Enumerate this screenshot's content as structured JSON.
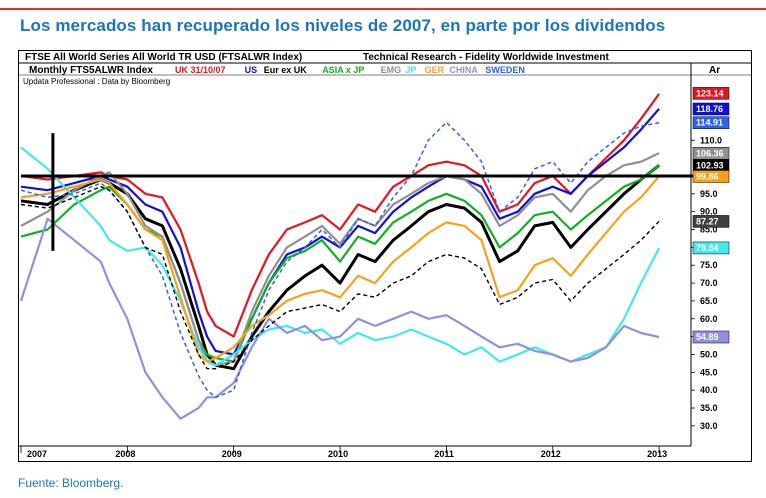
{
  "page": {
    "headline": "Los mercados han recuperado los niveles de 2007, en parte por los dividendos",
    "source": "Fuente: Bloomberg.",
    "brand": "updata",
    "accent_color": "#1b75bc",
    "rule_color": "#e0342a"
  },
  "chart_data": {
    "type": "line",
    "title": "FTSE All World Series All World TR USD (FTSALWR Index)",
    "title_right": "Technical Research - Fidelity Worldwide Investment",
    "subtitle": "Monthly FTS5ALWR Index",
    "legend": [
      {
        "label": "UK 31/10/07",
        "color": "#e8141b"
      },
      {
        "label": "US",
        "color": "#1010d8"
      },
      {
        "label": "Eur ex UK",
        "color": "#000000"
      },
      {
        "label": "ASIA x JP",
        "color": "#10b020"
      },
      {
        "label": "EMG",
        "color": "#909090"
      },
      {
        "label": "JP",
        "color": "#40e8f0"
      },
      {
        "label": "GER",
        "color": "#f5a21a"
      },
      {
        "label": "CHINA",
        "color": "#9090e0"
      },
      {
        "label": "SWEDEN",
        "color": "#3060f0"
      }
    ],
    "data_credit": "Updata Professional : Data by Bloomberg",
    "y_axis_label": "Ar",
    "ylim": [
      28,
      128
    ],
    "yticks": [
      "95.0",
      "90.0",
      "85.0",
      "80.0",
      "75.0",
      "70.0",
      "65.0",
      "60.0",
      "55.0",
      "50.0",
      "45.0",
      "40.0",
      "35.0",
      "30.0",
      "110.0"
    ],
    "x_labels": [
      "2007",
      "2008",
      "2009",
      "2010",
      "2011",
      "2012",
      "2013"
    ],
    "x_range": [
      2007.0,
      2013.3
    ],
    "reference_level": 100,
    "end_labels": [
      {
        "value": 123.14,
        "color": "#e8141b",
        "text": "123.14"
      },
      {
        "value": 118.76,
        "color": "#1010d8",
        "text": "118.76"
      },
      {
        "value": 114.91,
        "color": "#3060f0",
        "text": "114.91"
      },
      {
        "value": 106.36,
        "color": "#909090",
        "text": "106.36"
      },
      {
        "value": 102.93,
        "color": "#000000",
        "text": "102.93"
      },
      {
        "value": 99.86,
        "color": "#f5a21a",
        "text": "99.86"
      },
      {
        "value": 87.27,
        "color": "#404040",
        "text": "87.27"
      },
      {
        "value": 79.84,
        "color": "#40e8f0",
        "text": "79.84"
      },
      {
        "value": 54.89,
        "color": "#9090e0",
        "text": "54.89"
      }
    ],
    "series": [
      {
        "name": "UK",
        "color": "#e8141b",
        "width": 2.2,
        "dash": "",
        "x": [
          2007.0,
          2007.25,
          2007.5,
          2007.75,
          2007.83,
          2008.0,
          2008.17,
          2008.33,
          2008.5,
          2008.67,
          2008.75,
          2008.83,
          2009.0,
          2009.17,
          2009.33,
          2009.5,
          2009.67,
          2009.83,
          2010.0,
          2010.17,
          2010.33,
          2010.5,
          2010.67,
          2010.83,
          2011.0,
          2011.17,
          2011.33,
          2011.5,
          2011.67,
          2011.83,
          2012.0,
          2012.17,
          2012.33,
          2012.5,
          2012.67,
          2012.83,
          2013.0
        ],
        "y": [
          100,
          99,
          100,
          101,
          100,
          99,
          95,
          94,
          85,
          70,
          62,
          58,
          55,
          68,
          78,
          85,
          87,
          89,
          85,
          92,
          90,
          97,
          100,
          103,
          104,
          103,
          100,
          90,
          92,
          98,
          100,
          95,
          100,
          105,
          110,
          116,
          123
        ]
      },
      {
        "name": "US",
        "color": "#1010d8",
        "width": 2.2,
        "dash": "",
        "x": [
          2007.0,
          2007.25,
          2007.5,
          2007.75,
          2007.83,
          2008.0,
          2008.17,
          2008.33,
          2008.5,
          2008.67,
          2008.75,
          2008.83,
          2009.0,
          2009.17,
          2009.33,
          2009.5,
          2009.67,
          2009.83,
          2010.0,
          2010.17,
          2010.33,
          2010.5,
          2010.67,
          2010.83,
          2011.0,
          2011.17,
          2011.33,
          2011.5,
          2011.67,
          2011.83,
          2012.0,
          2012.17,
          2012.33,
          2012.5,
          2012.67,
          2012.83,
          2013.0
        ],
        "y": [
          97,
          96,
          98,
          100,
          99,
          97,
          92,
          90,
          80,
          62,
          55,
          51,
          50,
          60,
          70,
          78,
          80,
          83,
          80,
          86,
          84,
          90,
          94,
          97,
          100,
          99,
          97,
          88,
          90,
          95,
          97,
          95,
          100,
          104,
          108,
          113,
          118.8
        ]
      },
      {
        "name": "Eur ex UK",
        "color": "#000000",
        "width": 3,
        "dash": "",
        "x": [
          2007.0,
          2007.25,
          2007.5,
          2007.75,
          2007.83,
          2008.0,
          2008.17,
          2008.33,
          2008.5,
          2008.67,
          2008.75,
          2008.83,
          2009.0,
          2009.17,
          2009.33,
          2009.5,
          2009.67,
          2009.83,
          2010.0,
          2010.17,
          2010.33,
          2010.5,
          2010.67,
          2010.83,
          2011.0,
          2011.17,
          2011.33,
          2011.5,
          2011.67,
          2011.83,
          2012.0,
          2012.17,
          2012.33,
          2012.5,
          2012.67,
          2012.83,
          2013.0
        ],
        "y": [
          93,
          92,
          96,
          99,
          98,
          95,
          88,
          86,
          74,
          58,
          50,
          47,
          46,
          55,
          62,
          68,
          72,
          75,
          70,
          78,
          76,
          82,
          86,
          90,
          92,
          91,
          87,
          76,
          79,
          86,
          87,
          80,
          85,
          90,
          95,
          99,
          103
        ]
      },
      {
        "name": "ASIA x JP",
        "color": "#10b020",
        "width": 2.2,
        "dash": "",
        "x": [
          2007.0,
          2007.25,
          2007.5,
          2007.75,
          2007.83,
          2008.0,
          2008.17,
          2008.33,
          2008.5,
          2008.67,
          2008.75,
          2008.83,
          2009.0,
          2009.17,
          2009.33,
          2009.5,
          2009.67,
          2009.83,
          2010.0,
          2010.17,
          2010.33,
          2010.5,
          2010.67,
          2010.83,
          2011.0,
          2011.17,
          2011.33,
          2011.5,
          2011.67,
          2011.83,
          2012.0,
          2012.17,
          2012.33,
          2012.5,
          2012.67,
          2012.83,
          2013.0
        ],
        "y": [
          83,
          85,
          92,
          96,
          97,
          92,
          85,
          83,
          70,
          54,
          50,
          49,
          48,
          60,
          70,
          77,
          79,
          82,
          76,
          83,
          81,
          87,
          90,
          93,
          95,
          93,
          89,
          80,
          84,
          89,
          90,
          85,
          89,
          93,
          97,
          99,
          103
        ]
      },
      {
        "name": "EMG",
        "color": "#909090",
        "width": 2.2,
        "dash": "",
        "x": [
          2007.0,
          2007.25,
          2007.5,
          2007.75,
          2007.83,
          2008.0,
          2008.17,
          2008.33,
          2008.5,
          2008.67,
          2008.75,
          2008.83,
          2009.0,
          2009.17,
          2009.33,
          2009.5,
          2009.67,
          2009.83,
          2010.0,
          2010.17,
          2010.33,
          2010.5,
          2010.67,
          2010.83,
          2011.0,
          2011.17,
          2011.33,
          2011.5,
          2011.67,
          2011.83,
          2012.0,
          2012.17,
          2012.33,
          2012.5,
          2012.67,
          2012.83,
          2013.0
        ],
        "y": [
          86,
          90,
          96,
          100,
          101,
          95,
          86,
          83,
          70,
          54,
          48,
          47,
          48,
          62,
          72,
          80,
          83,
          86,
          81,
          88,
          86,
          92,
          95,
          98,
          100,
          99,
          95,
          86,
          89,
          94,
          95,
          90,
          96,
          100,
          103,
          104,
          106.4
        ]
      },
      {
        "name": "JP",
        "color": "#40e8f0",
        "width": 2.2,
        "dash": "",
        "x": [
          2007.0,
          2007.25,
          2007.5,
          2007.75,
          2007.83,
          2008.0,
          2008.17,
          2008.33,
          2008.5,
          2008.67,
          2008.75,
          2008.83,
          2009.0,
          2009.17,
          2009.33,
          2009.5,
          2009.67,
          2009.83,
          2010.0,
          2010.17,
          2010.33,
          2010.5,
          2010.67,
          2010.83,
          2011.0,
          2011.17,
          2011.33,
          2011.5,
          2011.67,
          2011.83,
          2012.0,
          2012.17,
          2012.33,
          2012.5,
          2012.67,
          2012.83,
          2013.0
        ],
        "y": [
          108,
          102,
          94,
          86,
          82,
          79,
          80,
          75,
          65,
          52,
          48,
          47,
          50,
          54,
          57,
          58,
          56,
          57,
          53,
          56,
          54,
          55,
          57,
          55,
          53,
          50,
          52,
          48,
          50,
          52,
          50,
          48,
          50,
          52,
          60,
          70,
          79.8
        ]
      },
      {
        "name": "GER",
        "color": "#f5a21a",
        "width": 2.2,
        "dash": "",
        "x": [
          2007.0,
          2007.25,
          2007.5,
          2007.75,
          2007.83,
          2008.0,
          2008.17,
          2008.33,
          2008.5,
          2008.67,
          2008.75,
          2008.83,
          2009.0,
          2009.17,
          2009.33,
          2009.5,
          2009.67,
          2009.83,
          2010.0,
          2010.17,
          2010.33,
          2010.5,
          2010.67,
          2010.83,
          2011.0,
          2011.17,
          2011.33,
          2011.5,
          2011.67,
          2011.83,
          2012.0,
          2012.17,
          2012.33,
          2012.5,
          2012.67,
          2012.83,
          2013.0
        ],
        "y": [
          94,
          95,
          97,
          99,
          98,
          92,
          85,
          82,
          66,
          50,
          48,
          49,
          52,
          58,
          61,
          65,
          67,
          68,
          66,
          72,
          70,
          76,
          80,
          84,
          87,
          86,
          82,
          66,
          68,
          75,
          77,
          72,
          78,
          84,
          90,
          94,
          99.9
        ]
      },
      {
        "name": "CHINA",
        "color": "#9090e0",
        "width": 2.2,
        "dash": "",
        "x": [
          2007.0,
          2007.25,
          2007.5,
          2007.75,
          2007.83,
          2008.0,
          2008.17,
          2008.33,
          2008.5,
          2008.67,
          2008.75,
          2008.83,
          2009.0,
          2009.17,
          2009.33,
          2009.5,
          2009.67,
          2009.83,
          2010.0,
          2010.17,
          2010.33,
          2010.5,
          2010.67,
          2010.83,
          2011.0,
          2011.17,
          2011.33,
          2011.5,
          2011.67,
          2011.83,
          2012.0,
          2012.17,
          2012.33,
          2012.5,
          2012.67,
          2012.83,
          2013.0
        ],
        "y": [
          65,
          88,
          82,
          76,
          70,
          60,
          45,
          38,
          32,
          35,
          38,
          38,
          42,
          52,
          60,
          56,
          58,
          54,
          55,
          60,
          58,
          60,
          62,
          60,
          61,
          58,
          55,
          52,
          53,
          51,
          50,
          48,
          49,
          52,
          58,
          56,
          54.9
        ]
      },
      {
        "name": "SWEDEN",
        "color": "#3060f0",
        "width": 1.5,
        "dash": "4,3",
        "x": [
          2007.0,
          2007.25,
          2007.5,
          2007.75,
          2007.83,
          2008.0,
          2008.17,
          2008.33,
          2008.5,
          2008.67,
          2008.75,
          2008.83,
          2009.0,
          2009.17,
          2009.33,
          2009.5,
          2009.67,
          2009.83,
          2010.0,
          2010.17,
          2010.33,
          2010.5,
          2010.67,
          2010.83,
          2011.0,
          2011.17,
          2011.33,
          2011.5,
          2011.67,
          2011.83,
          2012.0,
          2012.17,
          2012.33,
          2012.5,
          2012.67,
          2012.83,
          2013.0
        ],
        "y": [
          96,
          94,
          95,
          98,
          96,
          90,
          80,
          72,
          56,
          44,
          40,
          38,
          40,
          56,
          68,
          76,
          80,
          85,
          80,
          88,
          86,
          94,
          100,
          110,
          115,
          110,
          104,
          90,
          94,
          102,
          104,
          98,
          104,
          108,
          112,
          114,
          114.9
        ]
      },
      {
        "name": "",
        "color": "#000000",
        "width": 1.4,
        "dash": "4,3",
        "x": [
          2007.0,
          2007.25,
          2007.5,
          2007.75,
          2007.83,
          2008.0,
          2008.17,
          2008.33,
          2008.5,
          2008.67,
          2008.75,
          2008.83,
          2009.0,
          2009.17,
          2009.33,
          2009.5,
          2009.67,
          2009.83,
          2010.0,
          2010.17,
          2010.33,
          2010.5,
          2010.67,
          2010.83,
          2011.0,
          2011.17,
          2011.33,
          2011.5,
          2011.67,
          2011.83,
          2012.0,
          2012.17,
          2012.33,
          2012.5,
          2012.67,
          2012.83,
          2013.0
        ],
        "y": [
          92,
          91,
          94,
          97,
          96,
          90,
          80,
          78,
          62,
          50,
          46,
          46,
          48,
          54,
          58,
          62,
          63,
          64,
          62,
          67,
          66,
          70,
          72,
          76,
          78,
          77,
          74,
          64,
          66,
          70,
          71,
          65,
          70,
          74,
          78,
          82,
          87.3
        ]
      }
    ]
  }
}
